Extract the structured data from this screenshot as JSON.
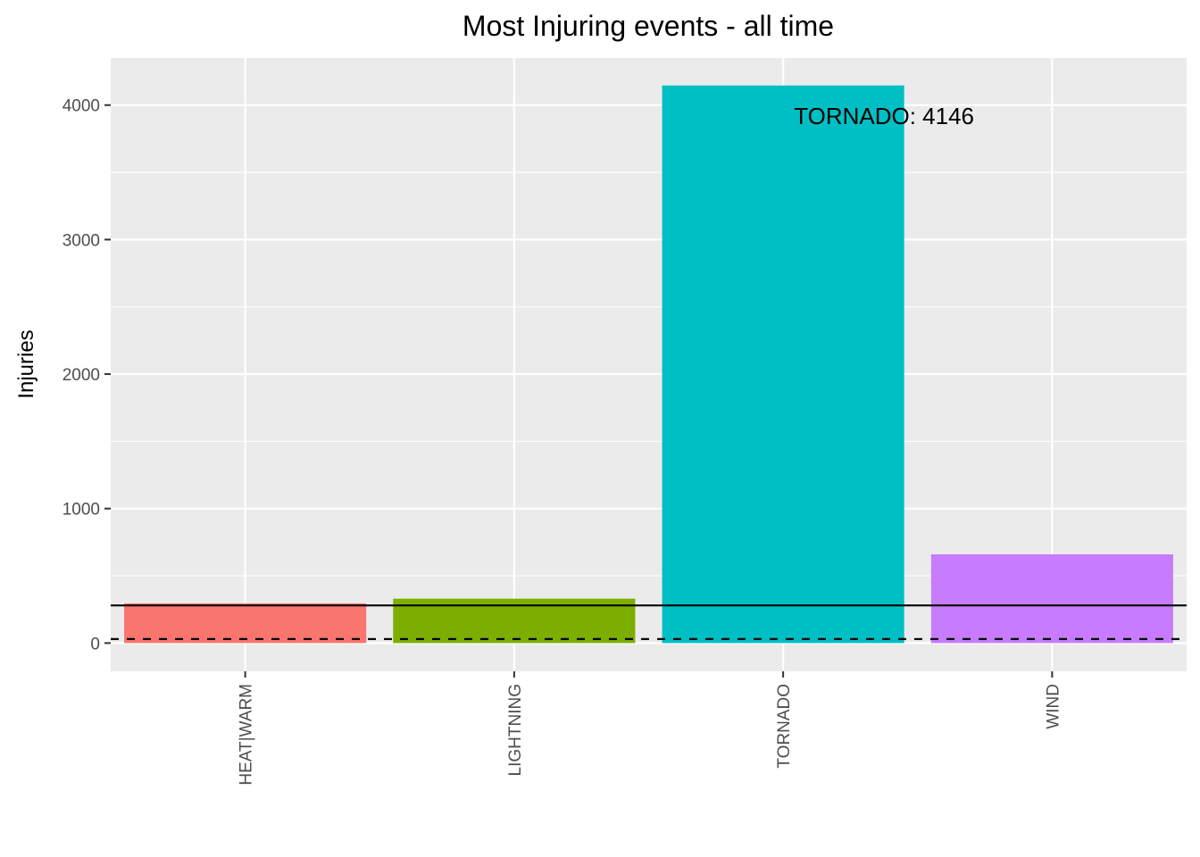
{
  "chart_data": {
    "type": "bar",
    "title": "Most Injuring events - all time",
    "xlabel": "",
    "ylabel": "Injuries",
    "categories": [
      "HEAT|WARM",
      "LIGHTNING",
      "TORNADO",
      "WIND"
    ],
    "values": [
      295,
      330,
      4146,
      660
    ],
    "colors": [
      "#F8766D",
      "#7CAE00",
      "#00BFC4",
      "#C77CFF"
    ],
    "ylim": [
      -210,
      4350
    ],
    "yticks": [
      0,
      1000,
      2000,
      3000,
      4000
    ],
    "reference_lines": [
      {
        "style": "solid",
        "value": 280
      },
      {
        "style": "dashed",
        "value": 30
      }
    ],
    "annotation": {
      "text": "TORNADO: 4146",
      "category": "TORNADO",
      "value": 3920
    },
    "grid": true,
    "legend": "none",
    "panel_background": "#EBEBEB"
  }
}
